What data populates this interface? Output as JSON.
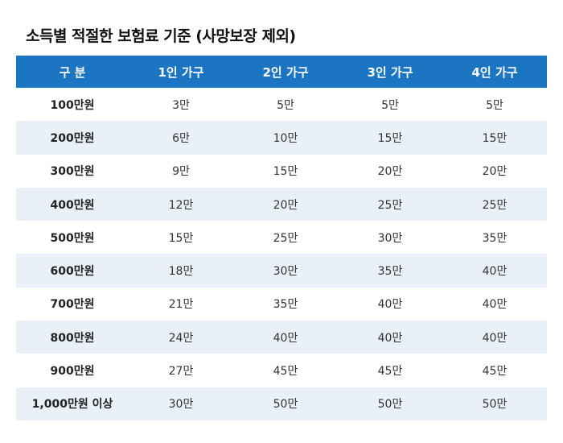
{
  "title": "소득별 적절한 보험료 기준 (사망보장 제외)",
  "headers": [
    "구 분",
    "1인 가구",
    "2인 가구",
    "3인 가구",
    "4인 가구"
  ],
  "rows": [
    [
      "100만원",
      "3만",
      "5만",
      "5만",
      "5만"
    ],
    [
      "200만원",
      "6만",
      "10만",
      "15만",
      "15만"
    ],
    [
      "300만원",
      "9만",
      "15만",
      "20만",
      "20만"
    ],
    [
      "400만원",
      "12만",
      "20만",
      "25만",
      "25만"
    ],
    [
      "500만원",
      "15만",
      "25만",
      "30만",
      "35만"
    ],
    [
      "600만원",
      "18만",
      "30만",
      "35만",
      "40만"
    ],
    [
      "700만원",
      "21만",
      "35만",
      "40만",
      "40만"
    ],
    [
      "800만원",
      "24만",
      "40만",
      "40만",
      "40만"
    ],
    [
      "900만원",
      "27만",
      "45만",
      "45만",
      "45만"
    ],
    [
      "1,000만원 이상",
      "30만",
      "50만",
      "50만",
      "50만"
    ]
  ],
  "colors": {
    "header_bg": "#1b75c2",
    "stripe_bg": "#e9f0f8"
  }
}
